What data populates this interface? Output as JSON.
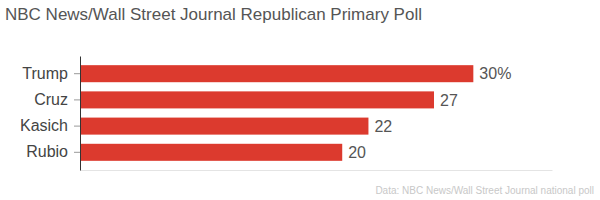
{
  "chart_data": {
    "type": "bar",
    "orientation": "horizontal",
    "title": "NBC News/Wall Street Journal Republican Primary Poll",
    "annotations": [
      "Data: NBC News/Wall Street Journal national poll"
    ],
    "categories": [
      "Trump",
      "Cruz",
      "Kasich",
      "Rubio"
    ],
    "values": [
      30,
      27,
      22,
      20
    ],
    "value_labels": [
      "30%",
      "27",
      "22",
      "20"
    ],
    "data_labels": true,
    "color": "#dc3a2e",
    "xlim": [
      0,
      36
    ],
    "tick_labels": "y",
    "grid": false
  }
}
